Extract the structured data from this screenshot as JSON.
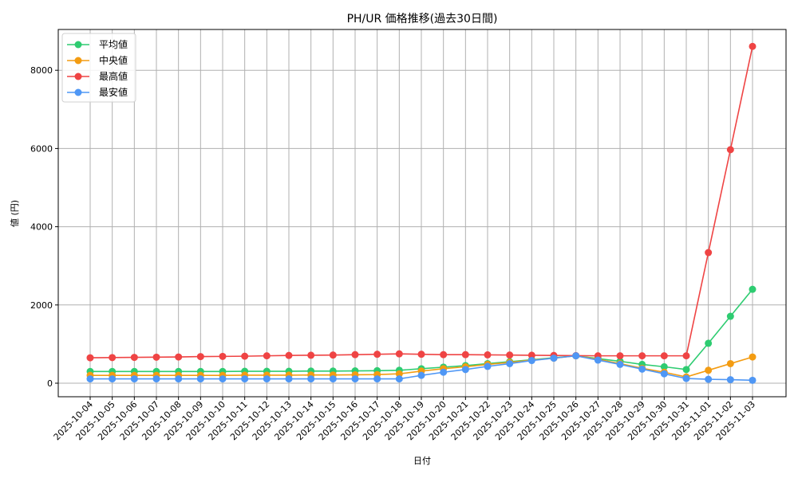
{
  "chart_data": {
    "type": "line",
    "title": "PH/UR 価格推移(過去30日間)",
    "xlabel": "日付",
    "ylabel": "値 (円)",
    "ylim": [
      -350,
      9050
    ],
    "yticks": [
      0,
      2000,
      4000,
      6000,
      8000
    ],
    "grid": true,
    "legend_position": "upper left",
    "x": [
      "2025-10-04",
      "2025-10-05",
      "2025-10-06",
      "2025-10-07",
      "2025-10-08",
      "2025-10-09",
      "2025-10-10",
      "2025-10-11",
      "2025-10-12",
      "2025-10-13",
      "2025-10-14",
      "2025-10-15",
      "2025-10-16",
      "2025-10-17",
      "2025-10-18",
      "2025-10-19",
      "2025-10-20",
      "2025-10-21",
      "2025-10-22",
      "2025-10-23",
      "2025-10-24",
      "2025-10-25",
      "2025-10-26",
      "2025-10-27",
      "2025-10-28",
      "2025-10-29",
      "2025-10-30",
      "2025-10-31",
      "2025-11-01",
      "2025-11-02",
      "2025-11-03"
    ],
    "series": [
      {
        "name": "平均値",
        "color": "#2ecc71",
        "values": [
          300,
          300,
          300,
          300,
          300,
          300,
          300,
          305,
          305,
          305,
          310,
          310,
          315,
          320,
          330,
          370,
          410,
          450,
          500,
          550,
          600,
          650,
          700,
          630,
          560,
          480,
          420,
          350,
          1020,
          1710,
          2400
        ]
      },
      {
        "name": "中央値",
        "color": "#f39c12",
        "values": [
          200,
          200,
          200,
          200,
          200,
          200,
          200,
          205,
          205,
          205,
          210,
          210,
          215,
          220,
          240,
          310,
          370,
          420,
          480,
          530,
          590,
          640,
          700,
          610,
          500,
          380,
          280,
          160,
          330,
          500,
          670
        ]
      },
      {
        "name": "最高値",
        "color": "#ef4444",
        "values": [
          650,
          655,
          660,
          665,
          670,
          680,
          685,
          690,
          700,
          710,
          715,
          720,
          730,
          740,
          750,
          740,
          730,
          730,
          725,
          720,
          715,
          710,
          705,
          700,
          700,
          700,
          700,
          700,
          3340,
          5970,
          8610
        ]
      },
      {
        "name": "最安値",
        "color": "#4f97f5",
        "values": [
          110,
          110,
          110,
          110,
          110,
          110,
          110,
          110,
          110,
          110,
          110,
          110,
          110,
          110,
          110,
          200,
          280,
          350,
          430,
          500,
          580,
          640,
          700,
          590,
          480,
          360,
          240,
          120,
          100,
          90,
          75
        ]
      }
    ]
  }
}
